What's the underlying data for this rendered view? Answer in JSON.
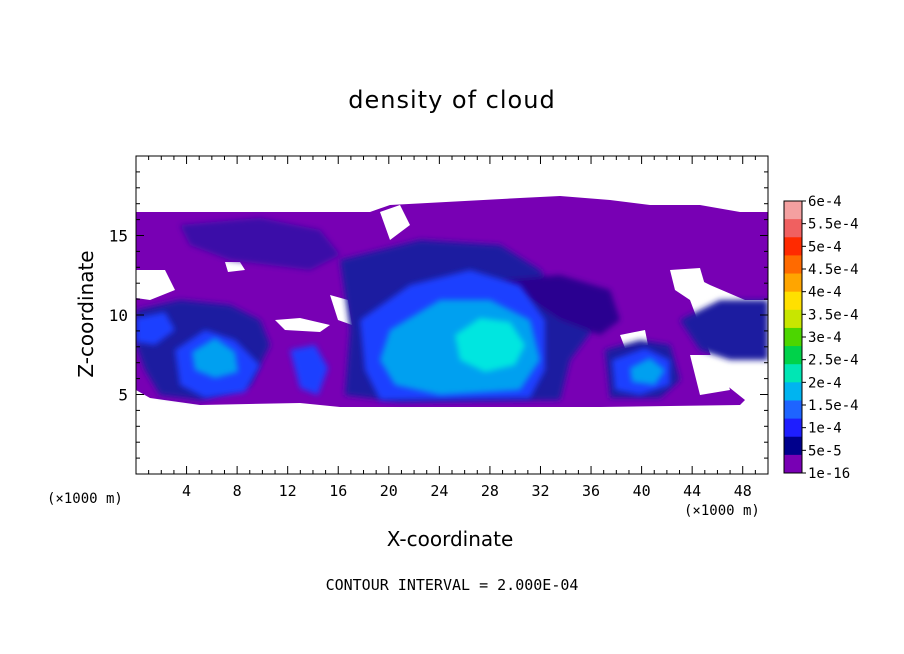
{
  "chart_data": {
    "type": "heatmap",
    "title": "density of cloud",
    "xlabel": "X-coordinate",
    "ylabel": "Z-coordinate",
    "x_unit_left": "(×1000 m)",
    "x_unit_right": "(×1000 m)",
    "footer": "CONTOUR INTERVAL = 2.000E-04",
    "xlim": [
      0,
      50
    ],
    "ylim": [
      0,
      20
    ],
    "x_ticks": [
      "4",
      "8",
      "12",
      "16",
      "20",
      "24",
      "28",
      "32",
      "36",
      "40",
      "44",
      "48"
    ],
    "y_ticks": [
      "5",
      "10",
      "15"
    ],
    "colorbar": {
      "labels": [
        "6e-4",
        "5.5e-4",
        "5e-4",
        "4.5e-4",
        "4e-4",
        "3.5e-4",
        "3e-4",
        "2.5e-4",
        "2e-4",
        "1.5e-4",
        "1e-4",
        "5e-5",
        "1e-16"
      ],
      "colors": [
        "#f4a0a0",
        "#f06060",
        "#ff2a00",
        "#ff6a00",
        "#ffa500",
        "#ffe000",
        "#c8e600",
        "#4cd600",
        "#00d24a",
        "#00e6b4",
        "#00b4f0",
        "#1e64ff",
        "#1e1eff",
        "#00008c",
        "#7800b4"
      ]
    },
    "cloud_cells": [
      {
        "x": 6.5,
        "z": 7.2,
        "value": "1.5e-4"
      },
      {
        "x": 13.5,
        "z": 7.5,
        "value": "1e-4"
      },
      {
        "x": 23,
        "z": 7.5,
        "value": "1.5e-4"
      },
      {
        "x": 27,
        "z": 8.5,
        "value": "2e-4"
      },
      {
        "x": 34,
        "z": 8.0,
        "value": "5e-5"
      },
      {
        "x": 40,
        "z": 6.5,
        "value": "1.5e-4"
      },
      {
        "x": 47,
        "z": 9.5,
        "value": "5e-5"
      },
      {
        "x": 2.5,
        "z": 9.5,
        "value": "1e-4"
      }
    ]
  }
}
